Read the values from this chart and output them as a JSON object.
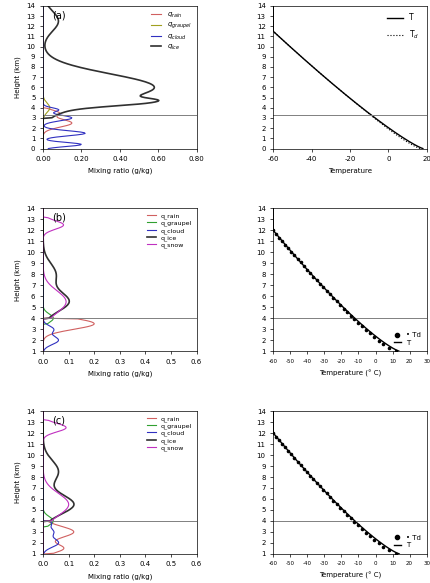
{
  "panel_a": {
    "label": "(a)",
    "hline": 3.3,
    "mixing_xlim": [
      0,
      0.8
    ],
    "mixing_xticks": [
      0.0,
      0.2,
      0.4,
      0.6,
      0.8
    ],
    "mixing_xtick_labels": [
      "0.00",
      "0.20",
      "0.40",
      "0.60",
      "0.80"
    ],
    "temp_xlim": [
      -60,
      20
    ],
    "temp_xticks": [
      -60,
      -40,
      -20,
      0,
      20
    ],
    "temp_xlabel": "Temperature",
    "ylim": [
      0,
      14
    ],
    "legend_items": [
      {
        "label": "q_rain",
        "color": "#d06060",
        "style": "-"
      },
      {
        "label": "q_graupel",
        "color": "#a0a020",
        "style": "-"
      },
      {
        "label": "q_cloud",
        "color": "#3030c0",
        "style": "-"
      },
      {
        "label": "q_ice",
        "color": "#303030",
        "style": "-"
      }
    ]
  },
  "panel_b": {
    "label": "(b)",
    "hline": 4.0,
    "mixing_xlim": [
      0,
      0.6
    ],
    "mixing_xticks": [
      0.0,
      0.1,
      0.2,
      0.3,
      0.4,
      0.5,
      0.6
    ],
    "mixing_xtick_labels": [
      "0.0",
      "0.1",
      "0.2",
      "0.3",
      "0.4",
      "0.5",
      "0.6"
    ],
    "temp_xlim": [
      -60,
      30
    ],
    "temp_xticks": [
      -60,
      -50,
      -40,
      -30,
      -20,
      -10,
      0,
      10,
      20,
      30
    ],
    "temp_xlabel": "Temperature (° C)",
    "ylim": [
      1,
      14
    ],
    "legend_items": [
      {
        "label": "q_rain",
        "color": "#d06060",
        "style": "-"
      },
      {
        "label": "q_graupel",
        "color": "#30a030",
        "style": "-"
      },
      {
        "label": "q_cloud",
        "color": "#3030c0",
        "style": "-"
      },
      {
        "label": "q_ice",
        "color": "#303030",
        "style": "-"
      },
      {
        "label": "q_snow",
        "color": "#c030c0",
        "style": "-"
      }
    ]
  },
  "panel_c": {
    "label": "(c)",
    "hline": 4.0,
    "mixing_xlim": [
      0,
      0.6
    ],
    "mixing_xticks": [
      0.0,
      0.1,
      0.2,
      0.3,
      0.4,
      0.5,
      0.6
    ],
    "mixing_xtick_labels": [
      "0.0",
      "0.1",
      "0.2",
      "0.3",
      "0.4",
      "0.5",
      "0.6"
    ],
    "temp_xlim": [
      -60,
      30
    ],
    "temp_xticks": [
      -60,
      -50,
      -40,
      -30,
      -20,
      -10,
      0,
      10,
      20,
      30
    ],
    "temp_xlabel": "Temperature (° C)",
    "ylim": [
      1,
      14
    ],
    "legend_items": [
      {
        "label": "q_rain",
        "color": "#d06060",
        "style": "-"
      },
      {
        "label": "q_graupel",
        "color": "#30a030",
        "style": "-"
      },
      {
        "label": "q_cloud",
        "color": "#3030c0",
        "style": "-"
      },
      {
        "label": "q_ice",
        "color": "#303030",
        "style": "-"
      },
      {
        "label": "q_snow",
        "color": "#c030c0",
        "style": "-"
      }
    ]
  },
  "ylabel": "Height (km)",
  "bg_color": "#ffffff"
}
